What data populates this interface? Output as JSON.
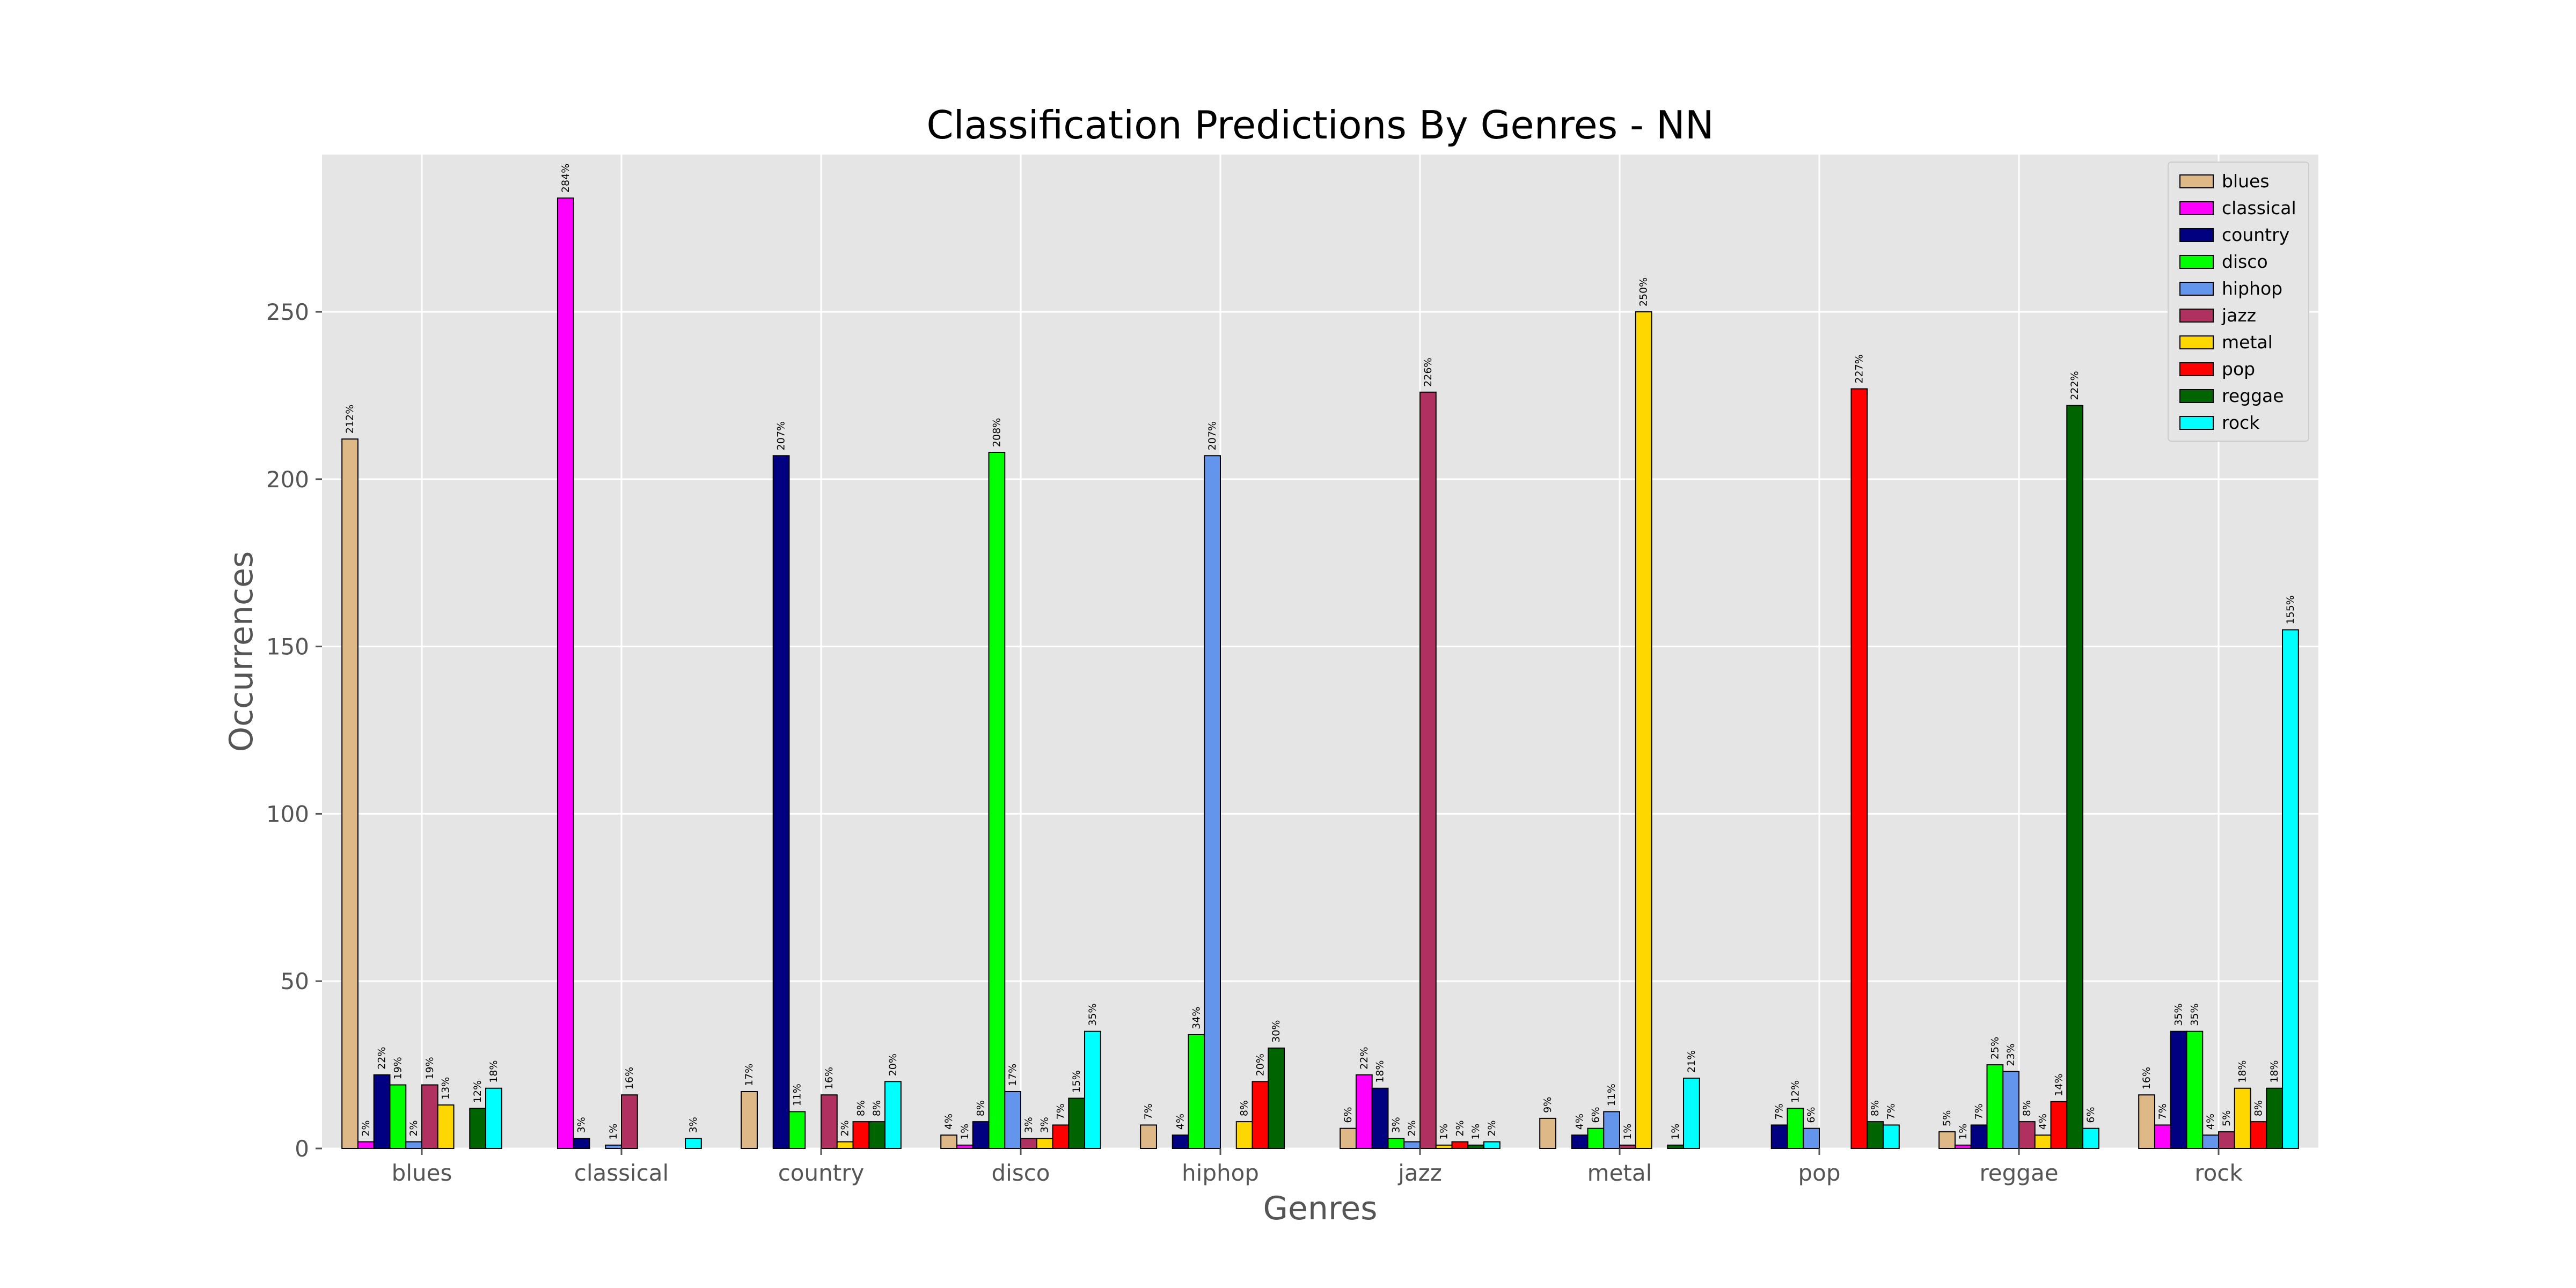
{
  "chart_data": {
    "type": "bar",
    "title": "Classification Predictions By Genres - NN",
    "xlabel": "Genres",
    "ylabel": "Occurrences",
    "ylim": [
      0,
      297
    ],
    "yticks": [
      0,
      50,
      100,
      150,
      200,
      250
    ],
    "grid": true,
    "legend_position": "top-right",
    "categories": [
      "blues",
      "classical",
      "country",
      "disco",
      "hiphop",
      "jazz",
      "metal",
      "pop",
      "reggae",
      "rock"
    ],
    "series": [
      {
        "name": "blues",
        "color": "#deb887",
        "values": [
          212,
          0,
          17,
          4,
          7,
          6,
          9,
          0,
          5,
          16
        ],
        "labels": [
          "212%",
          "",
          "17%",
          "4%",
          "7%",
          "6%",
          "9%",
          "",
          "5%",
          "16%"
        ]
      },
      {
        "name": "classical",
        "color": "#ff00ff",
        "values": [
          2,
          284,
          0,
          1,
          0,
          22,
          0,
          0,
          1,
          7
        ],
        "labels": [
          "2%",
          "284%",
          "",
          "1%",
          "",
          "22%",
          "",
          "",
          "1%",
          "7%"
        ]
      },
      {
        "name": "country",
        "color": "#000080",
        "values": [
          22,
          3,
          207,
          8,
          4,
          18,
          4,
          7,
          7,
          35
        ],
        "labels": [
          "22%",
          "3%",
          "207%",
          "8%",
          "4%",
          "18%",
          "4%",
          "7%",
          "7%",
          "35%"
        ]
      },
      {
        "name": "disco",
        "color": "#00ff00",
        "values": [
          19,
          0,
          11,
          208,
          34,
          3,
          6,
          12,
          25,
          35
        ],
        "labels": [
          "19%",
          "",
          "11%",
          "208%",
          "34%",
          "3%",
          "6%",
          "12%",
          "25%",
          "35%"
        ]
      },
      {
        "name": "hiphop",
        "color": "#6495ed",
        "values": [
          2,
          1,
          0,
          17,
          207,
          2,
          11,
          6,
          23,
          4
        ],
        "labels": [
          "2%",
          "1%",
          "",
          "17%",
          "207%",
          "2%",
          "11%",
          "6%",
          "23%",
          "4%"
        ]
      },
      {
        "name": "jazz",
        "color": "#b03060",
        "values": [
          19,
          16,
          16,
          3,
          0,
          226,
          1,
          0,
          8,
          5
        ],
        "labels": [
          "19%",
          "16%",
          "16%",
          "3%",
          "",
          "226%",
          "1%",
          "",
          "8%",
          "5%"
        ]
      },
      {
        "name": "metal",
        "color": "#ffd700",
        "values": [
          13,
          0,
          2,
          3,
          8,
          1,
          250,
          0,
          4,
          18
        ],
        "labels": [
          "13%",
          "",
          "2%",
          "3%",
          "8%",
          "1%",
          "250%",
          "",
          "4%",
          "18%"
        ]
      },
      {
        "name": "pop",
        "color": "#ff0000",
        "values": [
          0,
          0,
          8,
          7,
          20,
          2,
          0,
          227,
          14,
          8
        ],
        "labels": [
          "",
          "",
          "8%",
          "7%",
          "20%",
          "2%",
          "",
          "227%",
          "14%",
          "8%"
        ]
      },
      {
        "name": "reggae",
        "color": "#006400",
        "values": [
          12,
          0,
          8,
          15,
          30,
          1,
          1,
          8,
          222,
          18
        ],
        "labels": [
          "12%",
          "",
          "8%",
          "15%",
          "30%",
          "1%",
          "1%",
          "8%",
          "222%",
          "18%"
        ]
      },
      {
        "name": "rock",
        "color": "#00ffff",
        "values": [
          18,
          3,
          20,
          35,
          0,
          2,
          21,
          7,
          6,
          155
        ],
        "labels": [
          "18%",
          "3%",
          "20%",
          "35%",
          "",
          "2%",
          "21%",
          "7%",
          "6%",
          "155%"
        ]
      }
    ]
  }
}
